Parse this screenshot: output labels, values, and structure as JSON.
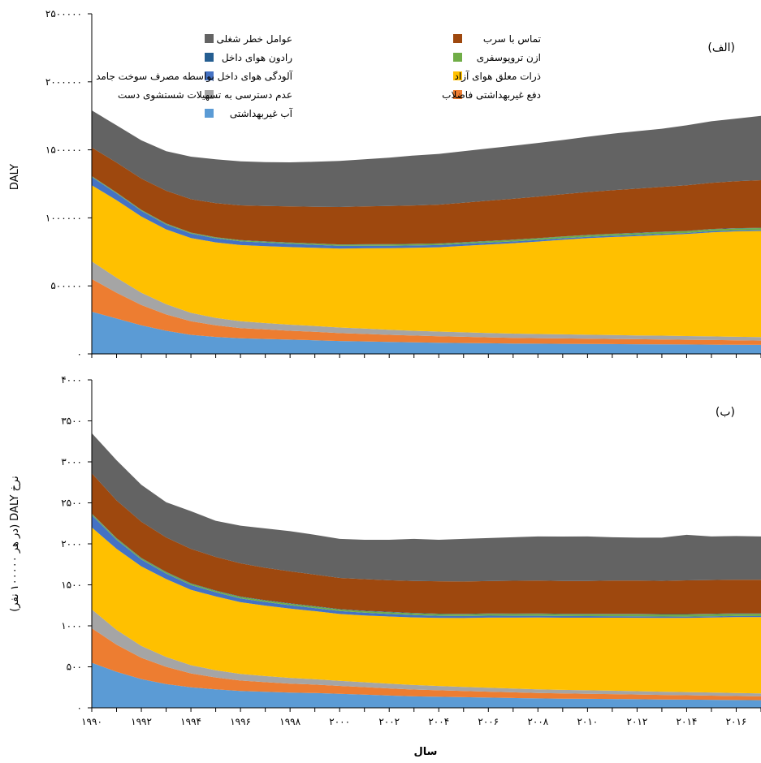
{
  "figure": {
    "xlabel": "سال",
    "x_ticks": [
      "۱۹۹۰",
      "۱۹۹۲",
      "۱۹۹۴",
      "۱۹۹۶",
      "۱۹۹۸",
      "۲۰۰۰",
      "۲۰۰۲",
      "۲۰۰۴",
      "۲۰۰۶",
      "۲۰۰۸",
      "۲۰۱۰",
      "۲۰۱۲",
      "۲۰۱۴",
      "۲۰۱۶"
    ]
  },
  "legend": [
    {
      "key": "occupational",
      "label": "عوامل خطر شغلی",
      "color": "#636363"
    },
    {
      "key": "lead",
      "label": "تماس با سرب",
      "color": "#9E480E"
    },
    {
      "key": "radon",
      "label": "رادون هوای داخل",
      "color": "#255E91"
    },
    {
      "key": "ozone",
      "label": "ازن تروپوسفری",
      "color": "#70AD47"
    },
    {
      "key": "household",
      "label": "آلودگی هوای داخل بواسطه مصرف سوخت جامد",
      "color": "#4472C4"
    },
    {
      "key": "pm",
      "label": "ذرات معلق هوای آزاد",
      "color": "#FFC000"
    },
    {
      "key": "handwashing",
      "label": "عدم دسترسی به تسهیلات شستشوی دست",
      "color": "#A5A5A5"
    },
    {
      "key": "sanitation",
      "label": "دفع غیربهداشتی فاضلاب",
      "color": "#ED7D31"
    },
    {
      "key": "water",
      "label": "آب غیربهداشتی",
      "color": "#5B9BD5"
    }
  ],
  "chart_data": [
    {
      "type": "area",
      "stacked": true,
      "panel": "(الف)",
      "ylabel": "DALY",
      "ylim": [
        0,
        2500000
      ],
      "y_ticks": [
        "۰",
        "۵۰۰۰۰۰",
        "۱۰۰۰۰۰۰",
        "۱۵۰۰۰۰۰",
        "۲۰۰۰۰۰۰",
        "۲۵۰۰۰۰۰"
      ],
      "x": [
        1990,
        1991,
        1992,
        1993,
        1994,
        1995,
        1996,
        1997,
        1998,
        1999,
        2000,
        2001,
        2002,
        2003,
        2004,
        2005,
        2006,
        2007,
        2008,
        2009,
        2010,
        2011,
        2012,
        2013,
        2014,
        2015,
        2016,
        2017
      ],
      "series": [
        {
          "key": "water",
          "name": "آب غیربهداشتی",
          "values": [
            310000,
            260000,
            210000,
            170000,
            140000,
            125000,
            115000,
            110000,
            105000,
            100000,
            95000,
            92000,
            88000,
            85000,
            82000,
            80000,
            78000,
            76000,
            75000,
            74000,
            73000,
            72000,
            71000,
            70000,
            69000,
            68000,
            67000,
            66000
          ]
        },
        {
          "key": "sanitation",
          "name": "دفع غیربهداشتی فاضلاب",
          "values": [
            240000,
            190000,
            150000,
            120000,
            100000,
            85000,
            75000,
            70000,
            65000,
            62000,
            58000,
            55000,
            52000,
            50000,
            48000,
            46000,
            44000,
            42000,
            41000,
            40000,
            39000,
            38000,
            37000,
            36000,
            35000,
            34000,
            33000,
            32000
          ]
        },
        {
          "key": "handwashing",
          "name": "عدم دسترسی به تسهیلات شستشوی دست",
          "values": [
            130000,
            110000,
            90000,
            75000,
            62000,
            55000,
            50000,
            47000,
            45000,
            43000,
            41000,
            39000,
            37000,
            35000,
            34000,
            33000,
            32000,
            31000,
            30000,
            30000,
            29000,
            29000,
            28000,
            28000,
            27000,
            27000,
            26000,
            26000
          ]
        },
        {
          "key": "pm",
          "name": "ذرات معلق هوای آزاد",
          "values": [
            560000,
            570000,
            560000,
            550000,
            550000,
            555000,
            560000,
            565000,
            570000,
            575000,
            580000,
            590000,
            600000,
            610000,
            620000,
            635000,
            650000,
            665000,
            680000,
            695000,
            710000,
            720000,
            730000,
            740000,
            750000,
            765000,
            775000,
            780000
          ]
        },
        {
          "key": "household",
          "name": "آلودگی هوای داخل بواسطه مصرف سوخت جامد",
          "values": [
            60000,
            50000,
            42000,
            36000,
            32000,
            30000,
            28000,
            26000,
            24000,
            22000,
            20000,
            19000,
            18000,
            17000,
            16000,
            15000,
            14000,
            13000,
            12000,
            11000,
            10000,
            10000,
            9000,
            9000,
            8000,
            8000,
            7000,
            7000
          ]
        },
        {
          "key": "ozone",
          "name": "ازن تروپوسفری",
          "values": [
            5000,
            5000,
            5000,
            6000,
            6000,
            6000,
            7000,
            7000,
            8000,
            8000,
            9000,
            9000,
            10000,
            10000,
            10000,
            10000,
            11000,
            11000,
            11000,
            12000,
            12000,
            12000,
            13000,
            13000,
            13000,
            14000,
            14000,
            14000
          ]
        },
        {
          "key": "radon",
          "name": "رادون هوای داخل",
          "values": [
            2000,
            2000,
            2000,
            2000,
            2000,
            2000,
            2000,
            2000,
            2000,
            2000,
            2000,
            2000,
            2000,
            2000,
            2000,
            2000,
            2000,
            2000,
            2000,
            2000,
            2000,
            2000,
            2000,
            2000,
            2000,
            2000,
            2000,
            2000
          ]
        },
        {
          "key": "lead",
          "name": "تماس با سرب",
          "values": [
            210000,
            220000,
            230000,
            240000,
            245000,
            250000,
            255000,
            260000,
            265000,
            270000,
            275000,
            278000,
            280000,
            282000,
            285000,
            290000,
            295000,
            300000,
            305000,
            310000,
            315000,
            320000,
            325000,
            330000,
            335000,
            340000,
            345000,
            350000
          ]
        },
        {
          "key": "occupational",
          "name": "عوامل خطر شغلی",
          "values": [
            273000,
            273000,
            281000,
            291000,
            313000,
            322000,
            323000,
            323000,
            324000,
            330000,
            338000,
            346000,
            355000,
            367000,
            373000,
            379000,
            384000,
            390000,
            395000,
            398000,
            406000,
            416000,
            422000,
            427000,
            441000,
            452000,
            461000,
            473000
          ]
        }
      ]
    },
    {
      "type": "area",
      "stacked": true,
      "panel": "(ب)",
      "ylabel": "نرخ DALY (در هر ۱۰۰۰۰۰ نفر)",
      "ylim": [
        0,
        4000
      ],
      "y_ticks": [
        "۰",
        "۵۰۰",
        "۱۰۰۰",
        "۱۵۰۰",
        "۲۰۰۰",
        "۲۵۰۰",
        "۳۰۰۰",
        "۳۵۰۰",
        "۴۰۰۰"
      ],
      "x": [
        1990,
        1991,
        1992,
        1993,
        1994,
        1995,
        1996,
        1997,
        1998,
        1999,
        2000,
        2001,
        2002,
        2003,
        2004,
        2005,
        2006,
        2007,
        2008,
        2009,
        2010,
        2011,
        2012,
        2013,
        2014,
        2015,
        2016,
        2017
      ],
      "series": [
        {
          "key": "water",
          "name": "آب غیربهداشتی",
          "values": [
            550,
            440,
            350,
            290,
            250,
            225,
            205,
            195,
            185,
            180,
            170,
            160,
            150,
            140,
            135,
            130,
            125,
            120,
            115,
            112,
            110,
            108,
            105,
            102,
            100,
            98,
            95,
            93
          ]
        },
        {
          "key": "sanitation",
          "name": "دفع غیربهداشتی فاضلاب",
          "values": [
            420,
            330,
            260,
            210,
            170,
            145,
            128,
            118,
            110,
            103,
            97,
            92,
            87,
            83,
            79,
            75,
            72,
            69,
            66,
            63,
            61,
            59,
            57,
            55,
            53,
            51,
            49,
            47
          ]
        },
        {
          "key": "handwashing",
          "name": "عدم دسترسی به تسهیلات شستشوی دست",
          "values": [
            230,
            180,
            145,
            120,
            100,
            88,
            80,
            74,
            70,
            66,
            63,
            60,
            57,
            55,
            52,
            50,
            48,
            46,
            45,
            44,
            43,
            42,
            41,
            40,
            39,
            38,
            37,
            36
          ]
        },
        {
          "key": "pm",
          "name": "ذرات معلق هوای آزاد",
          "values": [
            1000,
            990,
            970,
            950,
            920,
            900,
            875,
            860,
            845,
            830,
            815,
            815,
            820,
            825,
            830,
            840,
            855,
            865,
            875,
            880,
            885,
            890,
            895,
            900,
            905,
            915,
            925,
            930
          ]
        },
        {
          "key": "household",
          "name": "آلودگی هوای داخل بواسطه مصرف سوخت جامد",
          "values": [
            150,
            110,
            85,
            68,
            58,
            52,
            47,
            44,
            41,
            38,
            35,
            33,
            31,
            29,
            27,
            25,
            24,
            23,
            22,
            21,
            20,
            19,
            18,
            17,
            16,
            15,
            14,
            13
          ]
        },
        {
          "key": "ozone",
          "name": "ازن تروپوسفری",
          "values": [
            15,
            15,
            15,
            15,
            16,
            16,
            17,
            17,
            18,
            18,
            19,
            19,
            20,
            20,
            21,
            21,
            22,
            22,
            23,
            23,
            24,
            24,
            25,
            25,
            26,
            26,
            27,
            27
          ]
        },
        {
          "key": "radon",
          "name": "رادون هوای داخل",
          "values": [
            5,
            5,
            5,
            5,
            5,
            5,
            5,
            5,
            5,
            5,
            5,
            5,
            5,
            5,
            5,
            5,
            5,
            5,
            5,
            5,
            5,
            5,
            5,
            5,
            5,
            5,
            5,
            5
          ]
        },
        {
          "key": "lead",
          "name": "تماس با سرب",
          "values": [
            490,
            460,
            440,
            420,
            420,
            410,
            405,
            395,
            390,
            385,
            380,
            385,
            385,
            390,
            395,
            395,
            395,
            400,
            400,
            400,
            400,
            405,
            405,
            405,
            410,
            410,
            410,
            410
          ]
        },
        {
          "key": "occupational",
          "name": "عوامل خطر شغلی",
          "values": [
            490,
            490,
            450,
            430,
            460,
            440,
            460,
            480,
            490,
            485,
            476,
            481,
            495,
            513,
            506,
            519,
            524,
            530,
            539,
            541,
            542,
            528,
            524,
            526,
            556,
            532,
            533,
            529
          ]
        }
      ]
    }
  ]
}
